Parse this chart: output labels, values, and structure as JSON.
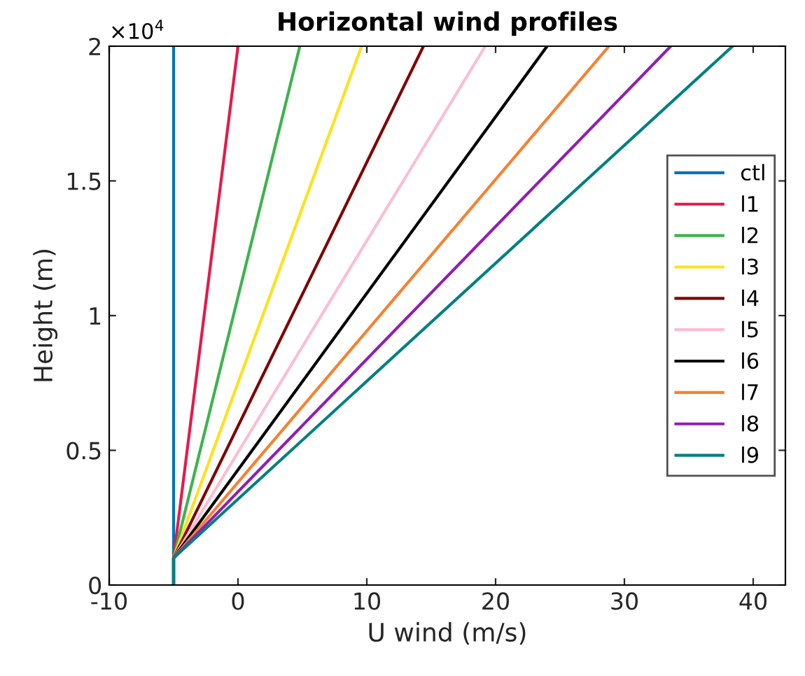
{
  "chart_data": {
    "type": "line",
    "title": "Horizontal wind profiles",
    "xlabel": "U wind (m/s)",
    "ylabel": "Height (m)",
    "xlim": [
      -10,
      42.5
    ],
    "xticks": [
      -10,
      0,
      10,
      20,
      30,
      40
    ],
    "ylim": [
      0,
      2
    ],
    "yticks": [
      0,
      0.5,
      1,
      1.5,
      2
    ],
    "annotations": [
      "×10$^{4}$"
    ],
    "grid": false,
    "legend": "right",
    "marker": "none",
    "line_style": "solid",
    "series": [
      {
        "name": "ctl",
        "color": "#0072bd",
        "x": [
          -5,
          -5,
          -5
        ],
        "values": [
          0,
          0.1,
          2
        ]
      },
      {
        "name": "l1",
        "color": "#e6194b",
        "x": [
          -5,
          -5,
          0
        ],
        "values": [
          0,
          0.1,
          2
        ]
      },
      {
        "name": "l2",
        "color": "#3cb44b",
        "x": [
          -5,
          -5,
          4.8
        ],
        "values": [
          0,
          0.1,
          2
        ]
      },
      {
        "name": "l3",
        "color": "#ffe119",
        "x": [
          -5,
          -5,
          9.6
        ],
        "values": [
          0,
          0.1,
          2
        ]
      },
      {
        "name": "l4",
        "color": "#800000",
        "x": [
          -5,
          -5,
          14.4
        ],
        "values": [
          0,
          0.1,
          2
        ]
      },
      {
        "name": "l5",
        "color": "#fabed4",
        "x": [
          -5,
          -5,
          19.2
        ],
        "values": [
          0,
          0.1,
          2
        ]
      },
      {
        "name": "l6",
        "color": "#000000",
        "x": [
          -5,
          -5,
          24
        ],
        "values": [
          0,
          0.1,
          2
        ]
      },
      {
        "name": "l7",
        "color": "#f58231",
        "x": [
          -5,
          -5,
          28.8
        ],
        "values": [
          0,
          0.1,
          2
        ]
      },
      {
        "name": "l8",
        "color": "#911eb4",
        "x": [
          -5,
          -5,
          33.6
        ],
        "values": [
          0,
          0.1,
          2
        ]
      },
      {
        "name": "l9",
        "color": "#008080",
        "x": [
          -5,
          -5,
          38.4
        ],
        "values": [
          0,
          0.1,
          2
        ]
      }
    ]
  }
}
